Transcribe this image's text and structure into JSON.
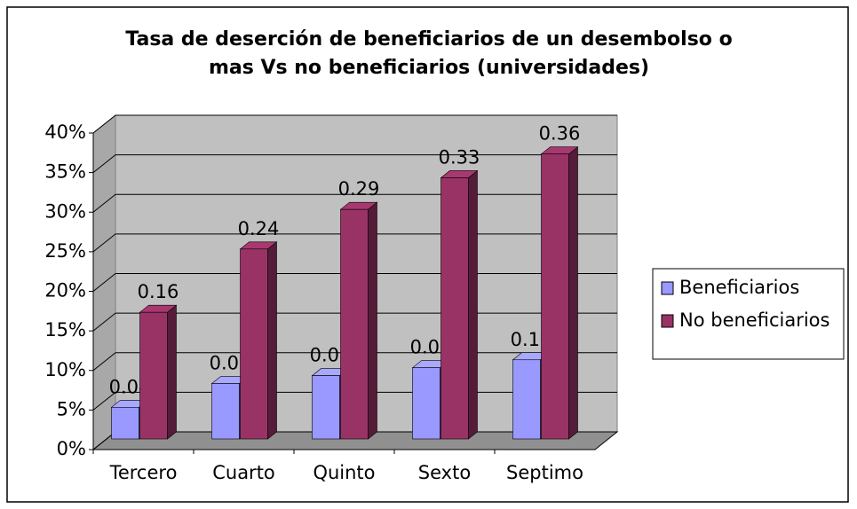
{
  "chart_data": {
    "type": "bar3d",
    "title": [
      "Tasa de deserción de beneficiarios de un desembolso o",
      "mas Vs no beneficiarios (universidades)"
    ],
    "categories": [
      "Tercero",
      "Cuarto",
      "Quinto",
      "Sexto",
      "Septimo"
    ],
    "series": [
      {
        "name": "Beneficiarios",
        "color": "#9999ff",
        "values": [
          4,
          7,
          8,
          9,
          10
        ],
        "value_labels": [
          "0.04",
          "0.07",
          "0.08",
          "0.09",
          "0.10"
        ]
      },
      {
        "name": "No beneficiarios",
        "color": "#993366",
        "values": [
          16,
          24,
          29,
          33,
          36
        ],
        "value_labels": [
          "0.16",
          "0.24",
          "0.29",
          "0.33",
          "0.36"
        ]
      }
    ],
    "ylim": [
      0,
      40
    ],
    "yticks": [
      {
        "value": 0,
        "label": "0%"
      },
      {
        "value": 5,
        "label": "5%"
      },
      {
        "value": 10,
        "label": "10%"
      },
      {
        "value": 15,
        "label": "15%"
      },
      {
        "value": 20,
        "label": "20%"
      },
      {
        "value": 25,
        "label": "25%"
      },
      {
        "value": 30,
        "label": "30%"
      },
      {
        "value": 35,
        "label": "35%"
      },
      {
        "value": 40,
        "label": "40%"
      }
    ],
    "grid": true,
    "legend": "right"
  }
}
